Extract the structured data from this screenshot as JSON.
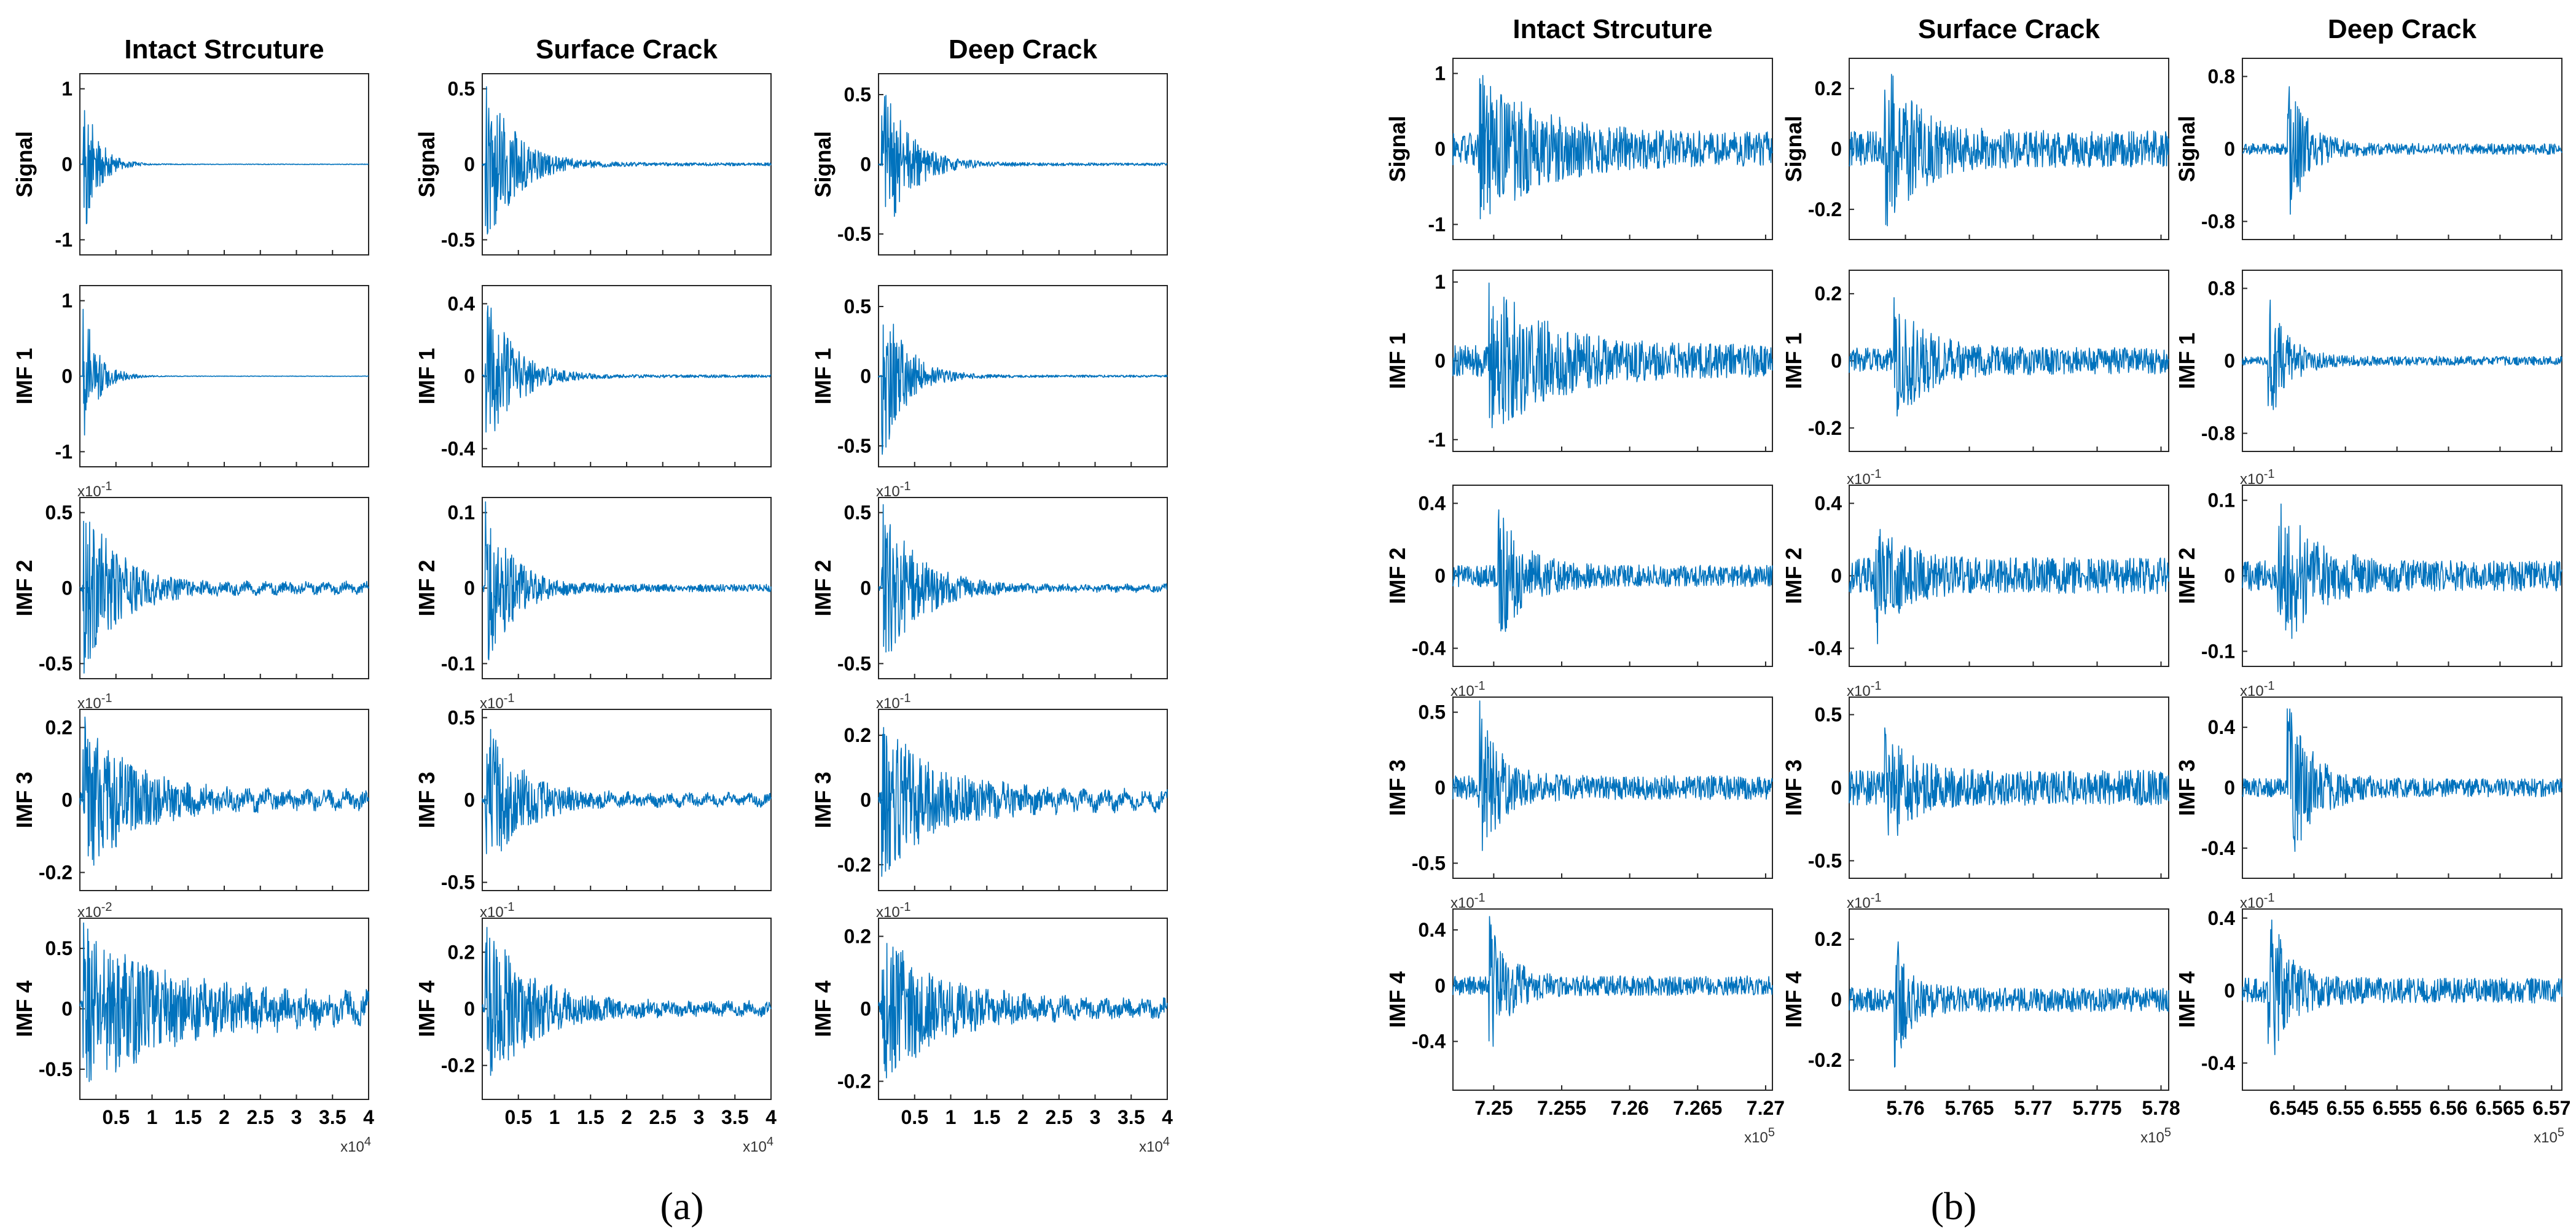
{
  "figure": {
    "trace_color": "#0072BD",
    "panels": [
      {
        "caption": "(a)"
      },
      {
        "caption": "(b)"
      }
    ]
  },
  "chart_data": [
    {
      "type": "line",
      "panel": "(a)",
      "columns": [
        "Intact Strcuture",
        "Surface Crack",
        "Deep Crack"
      ],
      "rows": [
        "Signal",
        "IMF 1",
        "IMF 2",
        "IMF 3",
        "IMF 4"
      ],
      "x_ticks": [
        "0.5",
        "1",
        "1.5",
        "2",
        "2.5",
        "3",
        "3.5",
        "4"
      ],
      "x_multiplier": "x10^4",
      "xlim": [
        0,
        40000
      ],
      "subplots": [
        [
          {
            "yticks": [
              "1",
              "0",
              "-1"
            ],
            "ylim": [
              -1.2,
              1.2
            ],
            "peak": 1.05,
            "decay": 0.05,
            "floor": 0.004,
            "ripple": 0.0,
            "multiplier": ""
          },
          {
            "yticks": [
              "1",
              "0",
              "-1"
            ],
            "ylim": [
              -1.2,
              1.2
            ],
            "peak": 1.0,
            "decay": 0.05,
            "floor": 0.003,
            "ripple": 0.0,
            "multiplier": ""
          },
          {
            "yticks": [
              "0.5",
              "0",
              "-0.5"
            ],
            "ylim": [
              -0.6,
              0.6
            ],
            "peak": 0.6,
            "decay": 0.12,
            "floor": 0.03,
            "ripple": 0.02,
            "multiplier": "x10^-1"
          },
          {
            "yticks": [
              "0.2",
              "0",
              "-0.2"
            ],
            "ylim": [
              -0.25,
              0.25
            ],
            "peak": 0.24,
            "decay": 0.16,
            "floor": 0.02,
            "ripple": 0.015,
            "multiplier": "x10^-1"
          },
          {
            "yticks": [
              "0.5",
              "0",
              "-0.5"
            ],
            "ylim": [
              -0.75,
              0.75
            ],
            "peak": 0.7,
            "decay": 0.3,
            "floor": 0.08,
            "ripple": 0.07,
            "multiplier": "x10^-2"
          }
        ],
        [
          {
            "yticks": [
              "0.5",
              "0",
              "-0.5"
            ],
            "ylim": [
              -0.6,
              0.6
            ],
            "peak": 0.6,
            "decay": 0.1,
            "floor": 0.01,
            "ripple": 0.0,
            "multiplier": ""
          },
          {
            "yticks": [
              "0.4",
              "0",
              "-0.4"
            ],
            "ylim": [
              -0.5,
              0.5
            ],
            "peak": 0.5,
            "decay": 0.09,
            "floor": 0.008,
            "ripple": 0.0,
            "multiplier": ""
          },
          {
            "yticks": [
              "0.1",
              "0",
              "-0.1"
            ],
            "ylim": [
              -0.12,
              0.12
            ],
            "peak": 0.12,
            "decay": 0.09,
            "floor": 0.005,
            "ripple": 0.0,
            "multiplier": ""
          },
          {
            "yticks": [
              "0.5",
              "0",
              "-0.5"
            ],
            "ylim": [
              -0.55,
              0.55
            ],
            "peak": 0.5,
            "decay": 0.12,
            "floor": 0.03,
            "ripple": 0.02,
            "multiplier": "x10^-1"
          },
          {
            "yticks": [
              "0.2",
              "0",
              "-0.2"
            ],
            "ylim": [
              -0.32,
              0.32
            ],
            "peak": 0.32,
            "decay": 0.15,
            "floor": 0.02,
            "ripple": 0.01,
            "multiplier": "x10^-1"
          }
        ],
        [
          {
            "yticks": [
              "0.5",
              "0",
              "-0.5"
            ],
            "ylim": [
              -0.65,
              0.65
            ],
            "peak": 0.65,
            "decay": 0.09,
            "floor": 0.01,
            "ripple": 0.0,
            "multiplier": ""
          },
          {
            "yticks": [
              "0.5",
              "0",
              "-0.5"
            ],
            "ylim": [
              -0.65,
              0.65
            ],
            "peak": 0.65,
            "decay": 0.08,
            "floor": 0.008,
            "ripple": 0.0,
            "multiplier": ""
          },
          {
            "yticks": [
              "0.5",
              "0",
              "-0.5"
            ],
            "ylim": [
              -0.6,
              0.6
            ],
            "peak": 0.6,
            "decay": 0.12,
            "floor": 0.02,
            "ripple": 0.01,
            "multiplier": "x10^-1"
          },
          {
            "yticks": [
              "0.2",
              "0",
              "-0.2"
            ],
            "ylim": [
              -0.28,
              0.28
            ],
            "peak": 0.25,
            "decay": 0.2,
            "floor": 0.02,
            "ripple": 0.02,
            "multiplier": "x10^-1"
          },
          {
            "yticks": [
              "0.2",
              "0",
              "-0.2"
            ],
            "ylim": [
              -0.25,
              0.25
            ],
            "peak": 0.22,
            "decay": 0.2,
            "floor": 0.02,
            "ripple": 0.012,
            "multiplier": "x10^-1"
          }
        ]
      ]
    },
    {
      "type": "line",
      "panel": "(b)",
      "columns": [
        "Intact Strcuture",
        "Surface Crack",
        "Deep Crack"
      ],
      "rows": [
        "Signal",
        "IMF 1",
        "IMF 2",
        "IMF 3",
        "IMF 4"
      ],
      "x_ticks": [
        [
          "7.25",
          "7.255",
          "7.26",
          "7.265",
          "7.27"
        ],
        [
          "5.76",
          "5.765",
          "5.77",
          "5.775",
          "5.78"
        ],
        [
          "6.545",
          "6.55",
          "6.555",
          "6.56",
          "6.565",
          "6.57"
        ]
      ],
      "x_multiplier": "x10^5",
      "xlim": [
        [
          724700,
          727050
        ],
        [
          575560,
          578060
        ],
        [
          654000,
          657100
        ]
      ],
      "subplots": [
        [
          {
            "yticks": [
              "1",
              "0",
              "-1"
            ],
            "ylim": [
              -1.2,
              1.2
            ],
            "peak": 1.1,
            "decay": 0.18,
            "floor": 0.22,
            "ripple": 0.0,
            "multiplier": ""
          },
          {
            "yticks": [
              "1",
              "0",
              "-1"
            ],
            "ylim": [
              -1.15,
              1.15
            ],
            "peak": 1.1,
            "decay": 0.18,
            "floor": 0.2,
            "ripple": 0.0,
            "multiplier": ""
          },
          {
            "yticks": [
              "0.4",
              "0",
              "-0.4"
            ],
            "ylim": [
              -0.5,
              0.5
            ],
            "peak": 0.4,
            "decay": 0.08,
            "floor": 0.06,
            "ripple": 0.0,
            "multiplier": ""
          },
          {
            "yticks": [
              "0.5",
              "0",
              "-0.5"
            ],
            "ylim": [
              -0.6,
              0.6
            ],
            "peak": 0.62,
            "decay": 0.06,
            "floor": 0.08,
            "ripple": 0.0,
            "multiplier": "x10^-1"
          },
          {
            "yticks": [
              "0.4",
              "0",
              "-0.4"
            ],
            "ylim": [
              -0.75,
              0.55
            ],
            "peak": 0.55,
            "decay": 0.06,
            "floor": 0.07,
            "ripple": 0.0,
            "multiplier": "x10^-1"
          }
        ],
        [
          {
            "yticks": [
              "0.2",
              "0",
              "-0.2"
            ],
            "ylim": [
              -0.3,
              0.3
            ],
            "peak": 0.3,
            "decay": 0.1,
            "floor": 0.06,
            "ripple": 0.0,
            "multiplier": ""
          },
          {
            "yticks": [
              "0.2",
              "0",
              "-0.2"
            ],
            "ylim": [
              -0.27,
              0.27
            ],
            "peak": 0.2,
            "decay": 0.1,
            "floor": 0.04,
            "ripple": 0.0,
            "multiplier": ""
          },
          {
            "yticks": [
              "0.4",
              "0",
              "-0.4"
            ],
            "ylim": [
              -0.5,
              0.5
            ],
            "peak": 0.42,
            "decay": 0.07,
            "floor": 0.1,
            "ripple": 0.0,
            "multiplier": "x10^-1"
          },
          {
            "yticks": [
              "0.5",
              "0",
              "-0.5"
            ],
            "ylim": [
              -0.62,
              0.62
            ],
            "peak": 0.5,
            "decay": 0.07,
            "floor": 0.12,
            "ripple": 0.0,
            "multiplier": "x10^-1"
          },
          {
            "yticks": [
              "0.2",
              "0",
              "-0.2"
            ],
            "ylim": [
              -0.3,
              0.3
            ],
            "peak": 0.25,
            "decay": 0.05,
            "floor": 0.04,
            "ripple": 0.0,
            "multiplier": "x10^-1"
          }
        ],
        [
          {
            "yticks": [
              "0.8",
              "0",
              "-0.8"
            ],
            "ylim": [
              -1.0,
              1.0
            ],
            "peak": 0.9,
            "decay": 0.06,
            "floor": 0.06,
            "ripple": 0.0,
            "multiplier": ""
          },
          {
            "yticks": [
              "0.8",
              "0",
              "-0.8"
            ],
            "ylim": [
              -1.0,
              1.0
            ],
            "peak": 0.75,
            "decay": 0.06,
            "floor": 0.05,
            "ripple": 0.0,
            "multiplier": ""
          },
          {
            "yticks": [
              "0.1",
              "0",
              "-0.1"
            ],
            "ylim": [
              -0.12,
              0.12
            ],
            "peak": 0.12,
            "decay": 0.1,
            "floor": 0.02,
            "ripple": 0.0,
            "multiplier": "x10^-1"
          },
          {
            "yticks": [
              "0.4",
              "0",
              "-0.4"
            ],
            "ylim": [
              -0.6,
              0.6
            ],
            "peak": 0.58,
            "decay": 0.08,
            "floor": 0.06,
            "ripple": 0.0,
            "multiplier": "x10^-1"
          },
          {
            "yticks": [
              "0.4",
              "0",
              "-0.4"
            ],
            "ylim": [
              -0.55,
              0.45
            ],
            "peak": 0.5,
            "decay": 0.06,
            "floor": 0.07,
            "ripple": 0.0,
            "multiplier": "x10^-1"
          }
        ]
      ]
    }
  ]
}
